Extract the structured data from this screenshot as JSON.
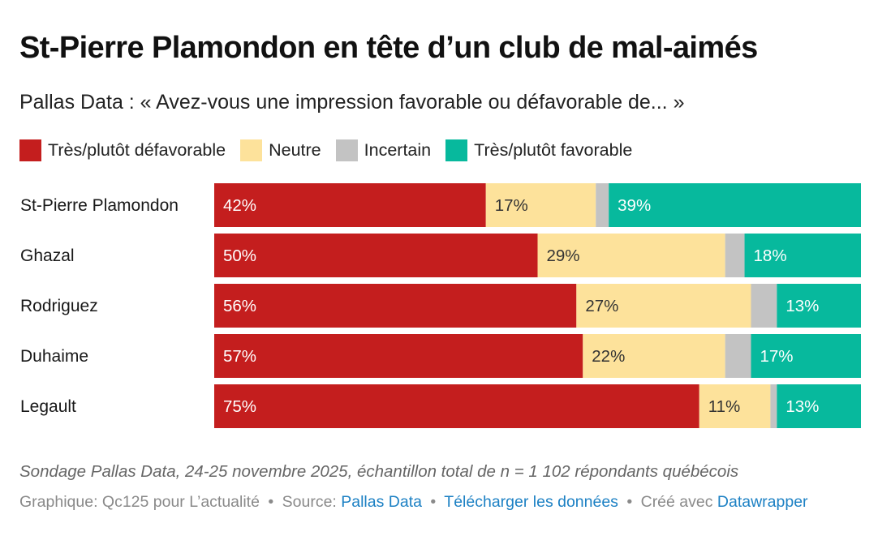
{
  "title": "St-Pierre Plamondon en tête d’un club de mal-aimés",
  "subtitle": "Pallas Data : « Avez-vous une impression favorable ou défavorable de... »",
  "legend": [
    {
      "label": "Très/plutôt défavorable",
      "color": "#c41e1e"
    },
    {
      "label": "Neutre",
      "color": "#fde29b"
    },
    {
      "label": "Incertain",
      "color": "#c3c3c3"
    },
    {
      "label": "Très/plutôt favorable",
      "color": "#07b99d"
    }
  ],
  "chart_data": {
    "type": "bar",
    "orientation": "horizontal-stacked-100",
    "title": "St-Pierre Plamondon en tête d’un club de mal-aimés",
    "subtitle": "Pallas Data : « Avez-vous une impression favorable ou défavorable de... »",
    "categories": [
      "St-Pierre Plamondon",
      "Ghazal",
      "Rodriguez",
      "Duhaime",
      "Legault"
    ],
    "series": [
      {
        "name": "Très/plutôt défavorable",
        "color": "#c41e1e",
        "label_color": "#ffffff",
        "values": [
          42,
          50,
          56,
          57,
          75
        ]
      },
      {
        "name": "Neutre",
        "color": "#fde29b",
        "label_color": "#333333",
        "values": [
          17,
          29,
          27,
          22,
          11
        ]
      },
      {
        "name": "Incertain",
        "color": "#c3c3c3",
        "label_color": null,
        "values": [
          2,
          3,
          4,
          4,
          1
        ]
      },
      {
        "name": "Très/plutôt favorable",
        "color": "#07b99d",
        "label_color": "#ffffff",
        "values": [
          39,
          18,
          13,
          17,
          13
        ]
      }
    ],
    "labels": [
      [
        "42%",
        "17%",
        "",
        "39%"
      ],
      [
        "50%",
        "29%",
        "",
        "18%"
      ],
      [
        "56%",
        "27%",
        "",
        "13%"
      ],
      [
        "57%",
        "22%",
        "",
        "17%"
      ],
      [
        "75%",
        "11%",
        "",
        "13%"
      ]
    ],
    "xlim": [
      0,
      100
    ],
    "unit": "%",
    "legend_position": "top-left",
    "grid": false
  },
  "notes": "Sondage Pallas Data, 24-25 novembre 2025, échantillon total de n = 1 102 répondants québécois",
  "byline": {
    "graphic_prefix": "Graphique: Qc125 pour L’actualité",
    "separator": "•",
    "source_prefix": "Source:",
    "source_link": "Pallas Data",
    "download_link": "Télécharger les données",
    "created_prefix": "Créé avec",
    "created_link": "Datawrapper"
  }
}
